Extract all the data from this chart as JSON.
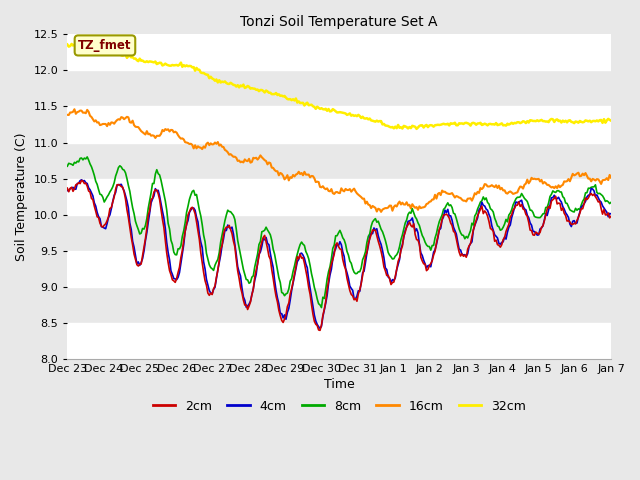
{
  "title": "Tonzi Soil Temperature Set A",
  "xlabel": "Time",
  "ylabel": "Soil Temperature (C)",
  "ylim": [
    8.0,
    12.5
  ],
  "background_color": "#e8e8e8",
  "plot_bg_color": "#e8e8e8",
  "grid_color": "white",
  "annotation_text": "TZ_fmet",
  "annotation_bg": "#ffffcc",
  "annotation_fg": "#800000",
  "x_tick_labels": [
    "Dec 23",
    "Dec 24",
    "Dec 25",
    "Dec 26",
    "Dec 27",
    "Dec 28",
    "Dec 29",
    "Dec 30",
    "Dec 31",
    "Jan 1",
    "Jan 2",
    "Jan 3",
    "Jan 4",
    "Jan 5",
    "Jan 6",
    "Jan 7"
  ],
  "line_colors": {
    "2cm": "#cc0000",
    "4cm": "#0000cc",
    "8cm": "#00aa00",
    "16cm": "#ff8800",
    "32cm": "#ffee00"
  },
  "line_widths": {
    "2cm": 1.2,
    "4cm": 1.2,
    "8cm": 1.2,
    "16cm": 1.5,
    "32cm": 1.8
  }
}
